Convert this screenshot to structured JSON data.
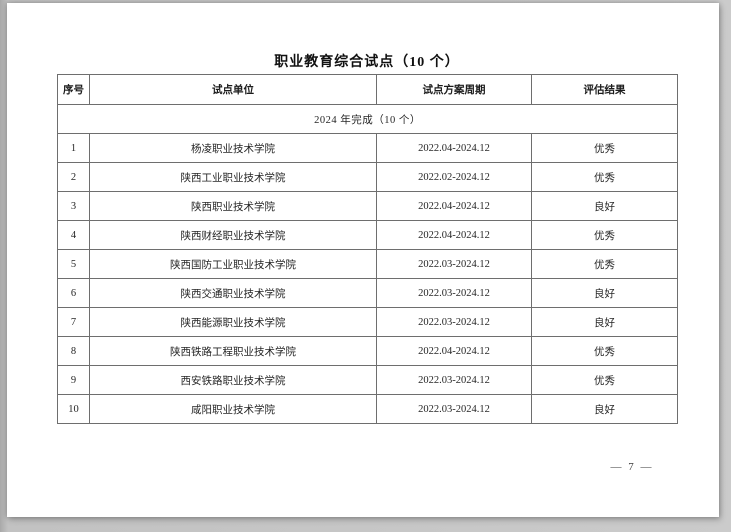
{
  "document": {
    "title": "职业教育综合试点（10 个）",
    "page_number": "— 7 —"
  },
  "table": {
    "headers": [
      "序号",
      "试点单位",
      "试点方案周期",
      "评估结果"
    ],
    "section_header": "2024 年完成（10 个）",
    "rows": [
      {
        "no": "1",
        "unit": "杨凌职业技术学院",
        "period": "2022.04-2024.12",
        "result": "优秀"
      },
      {
        "no": "2",
        "unit": "陕西工业职业技术学院",
        "period": "2022.02-2024.12",
        "result": "优秀"
      },
      {
        "no": "3",
        "unit": "陕西职业技术学院",
        "period": "2022.04-2024.12",
        "result": "良好"
      },
      {
        "no": "4",
        "unit": "陕西财经职业技术学院",
        "period": "2022.04-2024.12",
        "result": "优秀"
      },
      {
        "no": "5",
        "unit": "陕西国防工业职业技术学院",
        "period": "2022.03-2024.12",
        "result": "优秀"
      },
      {
        "no": "6",
        "unit": "陕西交通职业技术学院",
        "period": "2022.03-2024.12",
        "result": "良好"
      },
      {
        "no": "7",
        "unit": "陕西能源职业技术学院",
        "period": "2022.03-2024.12",
        "result": "良好"
      },
      {
        "no": "8",
        "unit": "陕西铁路工程职业技术学院",
        "period": "2022.04-2024.12",
        "result": "优秀"
      },
      {
        "no": "9",
        "unit": "西安铁路职业技术学院",
        "period": "2022.03-2024.12",
        "result": "优秀"
      },
      {
        "no": "10",
        "unit": "咸阳职业技术学院",
        "period": "2022.03-2024.12",
        "result": "良好"
      }
    ]
  },
  "colors": {
    "backdrop": "#c8c8c8",
    "paper": "#ffffff",
    "table_border": "#6e6e6e",
    "text": "#262626"
  }
}
